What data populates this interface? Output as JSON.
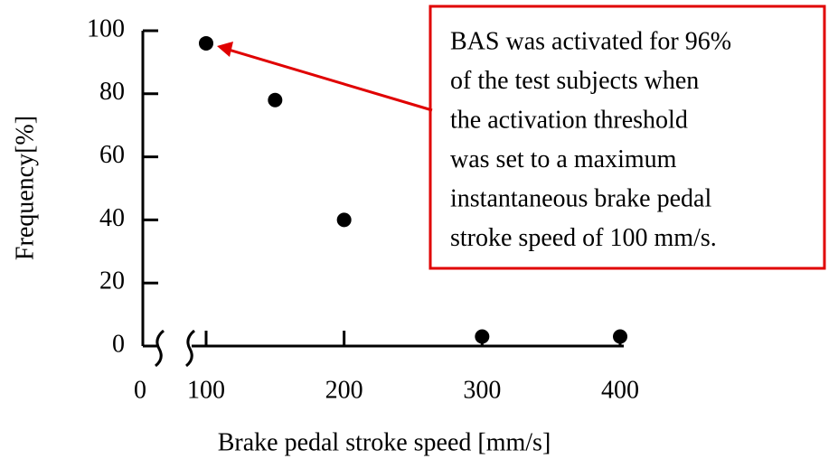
{
  "chart_data": {
    "type": "scatter",
    "x_label": "Brake pedal stroke speed [mm/s]",
    "y_label": "Frequency[%]",
    "x_axis_break": true,
    "series": [
      {
        "color": "#000000",
        "x": [
          100,
          150,
          200,
          300,
          400
        ],
        "values": [
          96,
          78,
          40,
          3,
          3
        ]
      }
    ],
    "xlim": [
      0,
      400
    ],
    "xticks": [
      0,
      100,
      200,
      300,
      400
    ],
    "ylim": [
      0,
      100
    ],
    "yticks": [
      0,
      20,
      40,
      60,
      80,
      100
    ],
    "annotation": {
      "lines": [
        "BAS was activated for 96%",
        "of the test subjects when",
        "the activation threshold",
        "was set to a maximum",
        "instantaneous brake pedal",
        "stroke speed of 100 mm/s."
      ],
      "color": "#008000",
      "border_color": "#e00000"
    }
  }
}
